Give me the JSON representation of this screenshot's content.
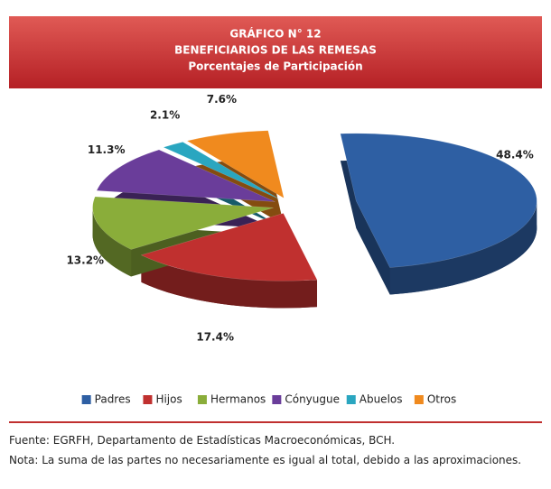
{
  "chart_data": {
    "type": "pie",
    "title": "GRÁFICO N° 12",
    "subtitle": "BENEFICIARIOS  DE LAS REMESAS",
    "subtitle2": "Porcentajes de Participación",
    "categories": [
      "Padres",
      "Hijos",
      "Hermanos",
      "Cónyugue",
      "Abuelos",
      "Otros"
    ],
    "values": [
      48.4,
      17.4,
      13.2,
      11.3,
      2.1,
      7.6
    ],
    "value_labels": [
      "48.4%",
      "17.4%",
      "13.2%",
      "11.3%",
      "2.1%",
      "7.6%"
    ],
    "colors": [
      "#2e5fa3",
      "#c0302f",
      "#8aad3a",
      "#6a3d9a",
      "#2aa6c0",
      "#f08a1e"
    ],
    "legend": "bottom",
    "source": "Fuente: EGRFH, Departamento de Estadísticas Macroeconómicas, BCH.",
    "note": "Nota: La suma de las partes no necesariamente es igual al total, debido a las aproximaciones."
  }
}
